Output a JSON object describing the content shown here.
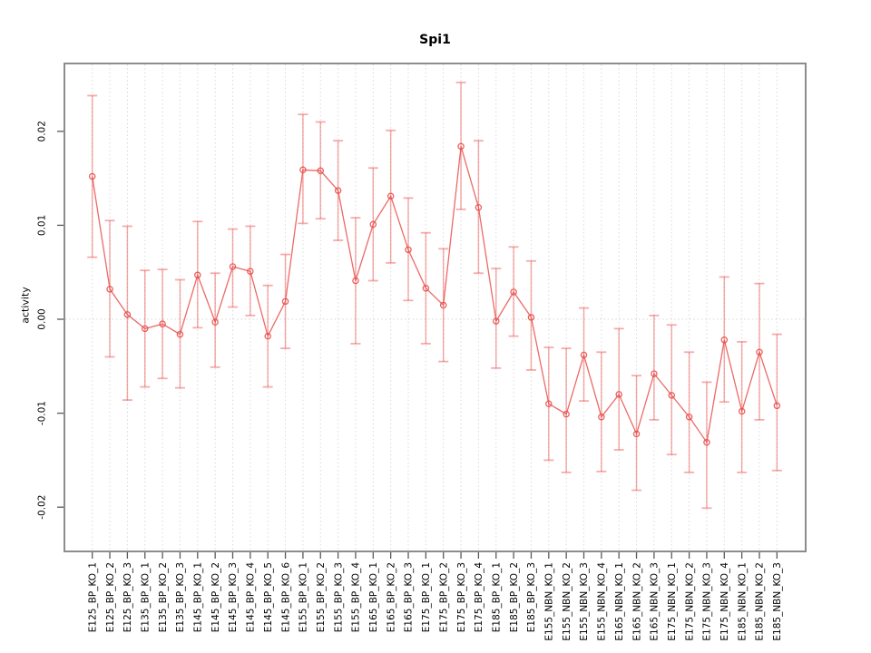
{
  "title": "Spi1",
  "ylabel": "activity",
  "chart_data": {
    "type": "line",
    "title": "Spi1",
    "xlabel": "",
    "ylabel": "activity",
    "ylim": [
      -0.025,
      0.027
    ],
    "yticks": [
      0.02,
      0.01,
      0.0,
      -0.01,
      -0.02
    ],
    "ytick_labels": [
      "0.02",
      "0.01",
      "0.00",
      "-0.01",
      "-0.02"
    ],
    "grid": "dotted vertical gridline at every category; dotted horizontal line at y=0",
    "legend_position": "none",
    "marker": "open-circle",
    "error_bars": true,
    "categories": [
      "E125_BP_KO_1",
      "E125_BP_KO_2",
      "E125_BP_KO_3",
      "E135_BP_KO_1",
      "E135_BP_KO_2",
      "E135_BP_KO_3",
      "E145_BP_KO_1",
      "E145_BP_KO_2",
      "E145_BP_KO_3",
      "E145_BP_KO_4",
      "E145_BP_KO_5",
      "E145_BP_KO_6",
      "E155_BP_KO_1",
      "E155_BP_KO_2",
      "E155_BP_KO_3",
      "E155_BP_KO_4",
      "E165_BP_KO_1",
      "E165_BP_KO_2",
      "E165_BP_KO_3",
      "E175_BP_KO_1",
      "E175_BP_KO_2",
      "E175_BP_KO_3",
      "E175_BP_KO_4",
      "E185_BP_KO_1",
      "E185_BP_KO_2",
      "E185_BP_KO_3",
      "E155_NBN_KO_1",
      "E155_NBN_KO_2",
      "E155_NBN_KO_3",
      "E155_NBN_KO_4",
      "E165_NBN_KO_1",
      "E165_NBN_KO_2",
      "E165_NBN_KO_3",
      "E175_NBN_KO_1",
      "E175_NBN_KO_2",
      "E175_NBN_KO_3",
      "E175_NBN_KO_4",
      "E185_NBN_KO_1",
      "E185_NBN_KO_2",
      "E185_NBN_KO_3"
    ],
    "series": [
      {
        "name": "activity",
        "values": [
          0.0152,
          0.0032,
          0.0005,
          -0.001,
          -0.0005,
          -0.0016,
          0.0047,
          -0.0003,
          0.0056,
          0.0051,
          -0.0018,
          0.0019,
          0.0159,
          0.0158,
          0.0137,
          0.0041,
          0.0101,
          0.0131,
          0.0074,
          0.0033,
          0.0015,
          0.0184,
          0.0119,
          -0.0002,
          0.0029,
          0.0002,
          -0.009,
          -0.0101,
          -0.0038,
          -0.0104,
          -0.008,
          -0.0122,
          -0.0058,
          -0.0081,
          -0.0104,
          -0.0131,
          -0.0022,
          -0.0098,
          -0.0035,
          -0.0092
        ],
        "error_high": [
          0.0238,
          0.0105,
          0.0099,
          0.0052,
          0.0053,
          0.0042,
          0.0104,
          0.0049,
          0.0096,
          0.0099,
          0.0036,
          0.0069,
          0.0218,
          0.021,
          0.019,
          0.0108,
          0.0161,
          0.0201,
          0.0129,
          0.0092,
          0.0075,
          0.0252,
          0.019,
          0.0054,
          0.0077,
          0.0062,
          -0.003,
          -0.0031,
          0.0012,
          -0.0035,
          -0.001,
          -0.006,
          0.0004,
          -0.0006,
          -0.0035,
          -0.0067,
          0.0045,
          -0.0024,
          0.0038,
          -0.0016
        ],
        "error_low": [
          0.0066,
          -0.004,
          -0.0086,
          -0.0072,
          -0.0063,
          -0.0073,
          -0.0009,
          -0.0051,
          0.0013,
          0.0004,
          -0.0072,
          -0.0031,
          0.0102,
          0.0107,
          0.0084,
          -0.0026,
          0.0041,
          0.006,
          0.002,
          -0.0026,
          -0.0045,
          0.0117,
          0.0049,
          -0.0052,
          -0.0018,
          -0.0054,
          -0.015,
          -0.0163,
          -0.0087,
          -0.0162,
          -0.0139,
          -0.0182,
          -0.0107,
          -0.0144,
          -0.0163,
          -0.0201,
          -0.0088,
          -0.0163,
          -0.0107,
          -0.0161
        ]
      }
    ],
    "colors": {
      "line": "#e8504c",
      "point": "#e8504c",
      "error_bar": "rgba(235,70,66,0.45)",
      "grid": "#d9d9d9",
      "zero_line": "#d4d4d4",
      "frame": "#8c8c8c",
      "tick": "#595959",
      "text": "#000000",
      "background": "#ffffff"
    }
  }
}
